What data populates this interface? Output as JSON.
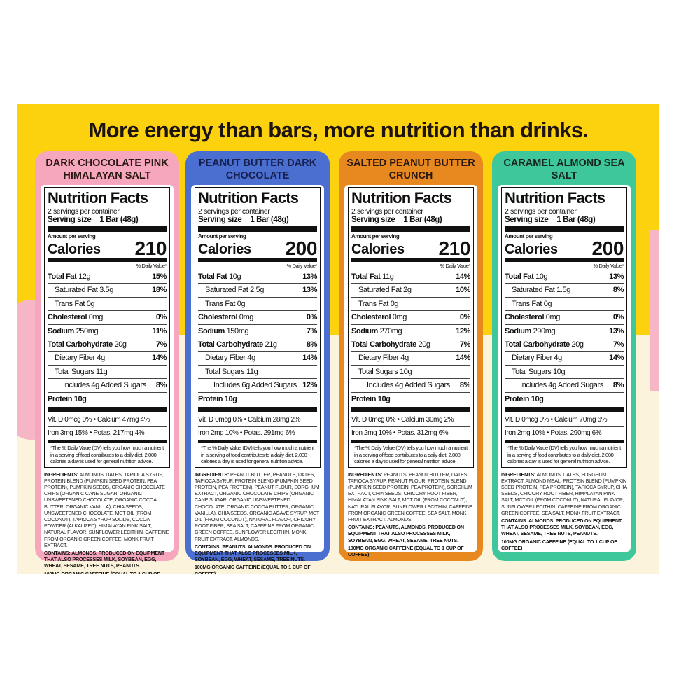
{
  "headline": "More energy than bars, more nutrition than drinks.",
  "colors": {
    "box_yellow": "#fcd20e",
    "cream": "#fbf3dc",
    "pink": "#f6a6bd",
    "blue": "#4b6fd1",
    "orange": "#e8891f",
    "green": "#3fc79c"
  },
  "common": {
    "title": "Nutrition Facts",
    "servings": "2 servings per container",
    "serving_size_label": "Serving size",
    "serving_size_value": "1 Bar (48g)",
    "amount_per_serving": "Amount per serving",
    "calories_label": "Calories",
    "dv_header": "% Daily Value*",
    "footnote": "*The % Daily Value (DV) tells you how much a nutrient in a serving of food contributes to a daily diet. 2,000 calories a day is used for general nutrition advice.",
    "ingredients_label": "INGREDIENTS:",
    "contains_label": "CONTAINS:",
    "caffeine": "100MG ORGANIC CAFFEINE (EQUAL TO 1 CUP OF COFFEE)"
  },
  "panels": [
    {
      "name": "DARK CHOCOLATE PINK HIMALAYAN SALT",
      "color": "#f6a6bd",
      "title_color": "#2a1812",
      "calories": "210",
      "rows": [
        {
          "name": "Total Fat",
          "amount": "12g",
          "dv": "15%",
          "style": "b"
        },
        {
          "name": "Saturated Fat",
          "amount": "3.5g",
          "dv": "18%",
          "style": "i1"
        },
        {
          "name": "Trans Fat",
          "amount": "0g",
          "dv": "",
          "style": "i1"
        },
        {
          "name": "Cholesterol",
          "amount": "0mg",
          "dv": "0%",
          "style": "b"
        },
        {
          "name": "Sodium",
          "amount": "250mg",
          "dv": "11%",
          "style": "b"
        },
        {
          "name": "Total Carbohydrate",
          "amount": "20g",
          "dv": "7%",
          "style": "b"
        },
        {
          "name": "Dietary Fiber",
          "amount": "4g",
          "dv": "14%",
          "style": "i1"
        },
        {
          "name": "Total Sugars",
          "amount": "11g",
          "dv": "",
          "style": "i1"
        },
        {
          "name": "Includes 4g Added Sugars",
          "amount": "",
          "dv": "8%",
          "style": "i2"
        }
      ],
      "protein": "Protein 10g",
      "vitamins": [
        "Vit. D 0mcg 0% • Calcium 47mg 4%",
        "Iron 3mg 15% • Potas. 217mg 4%"
      ],
      "ingredients": "ALMONDS, DATES, TAPIOCA SYRUP, PROTEIN BLEND (PUMPKIN SEED PROTEIN, PEA PROTEIN), PUMPKIN SEEDS, ORGANIC CHOCOLATE CHIPS (ORGANIC CANE SUGAR, ORGANIC UNSWEETENED CHOCOLATE, ORGANIC COCOA BUTTER, ORGANIC VANILLA), CHIA SEEDS, UNSWEETENED CHOCOLATE, MCT OIL (FROM COCONUT), TAPIOCA SYRUP SOLIDS, COCOA POWDER (ALKALIZED), HIMALAYAN PINK SALT, NATURAL FLAVOR, SUNFLOWER LECITHIN, CAFFEINE FROM ORGANIC GREEN COFFEE, MONK FRUIT EXTRACT.",
      "contains": "ALMONDS. PRODUCED ON EQUIPMENT THAT ALSO PROCESSES MILK, SOYBEAN, EGG, WHEAT, SESAME, TREE NUTS, PEANUTS."
    },
    {
      "name": "PEANUT BUTTER DARK CHOCOLATE",
      "color": "#4b6fd1",
      "title_color": "#16204f",
      "calories": "200",
      "rows": [
        {
          "name": "Total Fat",
          "amount": "10g",
          "dv": "13%",
          "style": "b"
        },
        {
          "name": "Saturated Fat",
          "amount": "2.5g",
          "dv": "13%",
          "style": "i1"
        },
        {
          "name": "Trans Fat",
          "amount": "0g",
          "dv": "",
          "style": "i1"
        },
        {
          "name": "Cholesterol",
          "amount": "0mg",
          "dv": "0%",
          "style": "b"
        },
        {
          "name": "Sodium",
          "amount": "150mg",
          "dv": "7%",
          "style": "b"
        },
        {
          "name": "Total Carbohydrate",
          "amount": "21g",
          "dv": "8%",
          "style": "b"
        },
        {
          "name": "Dietary Fiber",
          "amount": "4g",
          "dv": "14%",
          "style": "i1"
        },
        {
          "name": "Total Sugars",
          "amount": "11g",
          "dv": "",
          "style": "i1"
        },
        {
          "name": "Includes 6g Added Sugars",
          "amount": "",
          "dv": "12%",
          "style": "i2"
        }
      ],
      "protein": "Protein 10g",
      "vitamins": [
        "Vit. D 0mcg 0% • Calcium 28mg 2%",
        "Iron 2mg 10% • Potas. 291mg 6%"
      ],
      "ingredients": "PEANUT BUTTER, PEANUTS, DATES, TAPIOCA SYRUP, PROTEIN BLEND (PUMPKIN SEED PROTEIN, PEA PROTEIN), PEANUT FLOUR, SORGHUM EXTRACT, ORGANIC CHOCOLATE CHIPS (ORGANIC CANE SUGAR, ORGANIC UNSWEETENED CHOCOLATE, ORGANIC COCOA BUTTER, ORGANIC VANILLA), CHIA SEEDS, ORGANIC AGAVE SYRUP, MCT OIL (FROM COCONUT), NATURAL FLAVOR, CHICORY ROOT FIBER, SEA SALT, CAFFEINE FROM ORGANIC GREEN COFFEE, SUNFLOWER LECITHIN, MONK FRUIT EXTRACT, ALMONDS.",
      "contains": "PEANUTS, ALMONDS. PRODUCED ON EQUIPMENT THAT ALSO PROCESSES MILK, SOYBEAN, EGG, WHEAT, SESAME, TREE NUTS."
    },
    {
      "name": "SALTED PEANUT BUTTER CRUNCH",
      "color": "#e8891f",
      "title_color": "#2a1812",
      "calories": "210",
      "rows": [
        {
          "name": "Total Fat",
          "amount": "11g",
          "dv": "14%",
          "style": "b"
        },
        {
          "name": "Saturated Fat",
          "amount": "2g",
          "dv": "10%",
          "style": "i1"
        },
        {
          "name": "Trans Fat",
          "amount": "0g",
          "dv": "",
          "style": "i1"
        },
        {
          "name": "Cholesterol",
          "amount": "0mg",
          "dv": "0%",
          "style": "b"
        },
        {
          "name": "Sodium",
          "amount": "270mg",
          "dv": "12%",
          "style": "b"
        },
        {
          "name": "Total Carbohydrate",
          "amount": "20g",
          "dv": "7%",
          "style": "b"
        },
        {
          "name": "Dietary Fiber",
          "amount": "4g",
          "dv": "14%",
          "style": "i1"
        },
        {
          "name": "Total Sugars",
          "amount": "10g",
          "dv": "",
          "style": "i1"
        },
        {
          "name": "Includes 4g Added Sugars",
          "amount": "",
          "dv": "8%",
          "style": "i2"
        }
      ],
      "protein": "Protein 10g",
      "vitamins": [
        "Vit. D 0mcg 0% • Calcium 30mg 2%",
        "Iron 2mg 10% • Potas. 312mg 6%"
      ],
      "ingredients": "PEANUTS, PEANUT BUTTER, DATES, TAPIOCA SYRUP, PEANUT FLOUR, PROTEIN BLEND (PUMPKIN SEED PROTEIN, PEA PROTEIN), SORGHUM EXTRACT, CHIA SEEDS, CHICORY ROOT FIBER, HIMALAYAN PINK SALT, MCT OIL (FROM COCONUT), NATURAL FLAVOR, SUNFLOWER LECITHIN, CAFFEINE FROM ORGANIC GREEN COFFEE, SEA SALT, MONK FRUIT EXTRACT, ALMONDS.",
      "contains": "PEANUTS, ALMONDS. PRODUCED ON EQUIPMENT THAT ALSO PROCESSES MILK, SOYBEAN, EGG, WHEAT, SESAME, TREE NUTS."
    },
    {
      "name": "CARAMEL ALMOND SEA SALT",
      "color": "#3fc79c",
      "title_color": "#16261f",
      "calories": "200",
      "rows": [
        {
          "name": "Total Fat",
          "amount": "10g",
          "dv": "13%",
          "style": "b"
        },
        {
          "name": "Saturated Fat",
          "amount": "1.5g",
          "dv": "8%",
          "style": "i1"
        },
        {
          "name": "Trans Fat",
          "amount": "0g",
          "dv": "",
          "style": "i1"
        },
        {
          "name": "Cholesterol",
          "amount": "0mg",
          "dv": "0%",
          "style": "b"
        },
        {
          "name": "Sodium",
          "amount": "290mg",
          "dv": "13%",
          "style": "b"
        },
        {
          "name": "Total Carbohydrate",
          "amount": "20g",
          "dv": "7%",
          "style": "b"
        },
        {
          "name": "Dietary Fiber",
          "amount": "4g",
          "dv": "14%",
          "style": "i1"
        },
        {
          "name": "Total Sugars",
          "amount": "10g",
          "dv": "",
          "style": "i1"
        },
        {
          "name": "Includes 4g Added Sugars",
          "amount": "",
          "dv": "8%",
          "style": "i2"
        }
      ],
      "protein": "Protein 10g",
      "vitamins": [
        "Vit. D 0mcg 0% • Calcium 70mg 6%",
        "Iron 2mg 10% • Potas. 290mg 6%"
      ],
      "ingredients": "ALMONDS, DATES, SORGHUM EXTRACT, ALMOND MEAL, PROTEIN BLEND (PUMPKIN SEED PROTEIN, PEA PROTEIN), TAPIOCA SYRUP, CHIA SEEDS, CHICORY ROOT FIBER, HIMALAYAN PINK SALT, MCT OIL (FROM COCONUT), NATURAL FLAVOR, SUNFLOWER LECITHIN, CAFFEINE FROM ORGANIC GREEN COFFEE, SEA SALT, MONK FRUIT EXTRACT.",
      "contains": "ALMONDS. PRODUCED ON EQUIPMENT THAT ALSO PROCESSES MILK, SOYBEAN, EGG, WHEAT, SESAME, TREE NUTS, PEANUTS."
    }
  ]
}
